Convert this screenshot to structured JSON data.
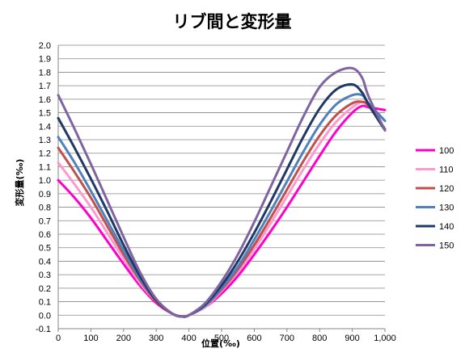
{
  "chart_data": {
    "type": "line",
    "title": "リブ間と変形量",
    "xlabel": "位置(‰)",
    "ylabel": "変形量(‰)",
    "xlim": [
      0,
      1000
    ],
    "ylim": [
      -0.1,
      2.0
    ],
    "x_ticks": [
      "0",
      "100",
      "200",
      "300",
      "400",
      "500",
      "600",
      "700",
      "800",
      "900",
      "1,000"
    ],
    "y_ticks": [
      "-0.1",
      "0.0",
      "0.1",
      "0.2",
      "0.3",
      "0.4",
      "0.5",
      "0.6",
      "0.7",
      "0.8",
      "0.9",
      "1.0",
      "1.1",
      "1.2",
      "1.3",
      "1.4",
      "1.5",
      "1.6",
      "1.7",
      "1.8",
      "1.9",
      "2.0"
    ],
    "grid": "horizontal",
    "legend_position": "right",
    "x": [
      0,
      50,
      100,
      150,
      200,
      250,
      300,
      350,
      380,
      400,
      450,
      500,
      550,
      600,
      650,
      700,
      750,
      800,
      850,
      900,
      930,
      950,
      1000
    ],
    "series": [
      {
        "name": "100",
        "color": "#ff00cc",
        "values": [
          1.0,
          0.87,
          0.72,
          0.55,
          0.38,
          0.22,
          0.09,
          0.01,
          -0.01,
          0.0,
          0.06,
          0.16,
          0.29,
          0.45,
          0.62,
          0.8,
          0.99,
          1.18,
          1.36,
          1.5,
          1.55,
          1.54,
          1.52
        ]
      },
      {
        "name": "110",
        "color": "#ff99cc",
        "values": [
          1.13,
          0.97,
          0.8,
          0.61,
          0.42,
          0.24,
          0.1,
          0.01,
          -0.01,
          0.0,
          0.06,
          0.18,
          0.32,
          0.49,
          0.68,
          0.88,
          1.08,
          1.27,
          1.43,
          1.54,
          1.58,
          1.55,
          1.44
        ]
      },
      {
        "name": "120",
        "color": "#c0504d",
        "values": [
          1.24,
          1.06,
          0.87,
          0.66,
          0.45,
          0.26,
          0.1,
          0.01,
          -0.01,
          0.0,
          0.07,
          0.19,
          0.34,
          0.52,
          0.72,
          0.93,
          1.14,
          1.33,
          1.48,
          1.57,
          1.58,
          1.55,
          1.38
        ]
      },
      {
        "name": "130",
        "color": "#4f81bd",
        "values": [
          1.32,
          1.13,
          0.92,
          0.7,
          0.48,
          0.27,
          0.11,
          0.01,
          -0.01,
          0.0,
          0.07,
          0.2,
          0.36,
          0.56,
          0.77,
          0.99,
          1.21,
          1.41,
          1.56,
          1.63,
          1.63,
          1.57,
          1.44
        ]
      },
      {
        "name": "140",
        "color": "#1f3864",
        "values": [
          1.46,
          1.24,
          1.01,
          0.77,
          0.52,
          0.29,
          0.11,
          0.01,
          -0.01,
          0.0,
          0.08,
          0.22,
          0.4,
          0.61,
          0.84,
          1.08,
          1.32,
          1.53,
          1.67,
          1.71,
          1.65,
          1.56,
          1.37
        ]
      },
      {
        "name": "150",
        "color": "#8064a2",
        "values": [
          1.63,
          1.38,
          1.12,
          0.85,
          0.58,
          0.32,
          0.12,
          0.01,
          -0.01,
          0.0,
          0.09,
          0.25,
          0.45,
          0.69,
          0.95,
          1.21,
          1.47,
          1.69,
          1.8,
          1.83,
          1.76,
          1.62,
          1.37
        ]
      }
    ]
  }
}
